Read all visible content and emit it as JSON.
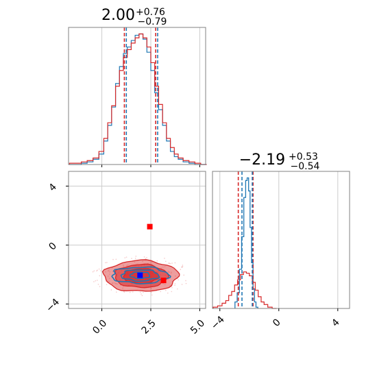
{
  "chart_data": {
    "type": "corner",
    "colors": {
      "series_a": "#d62728",
      "series_b": "#1f77b4",
      "marker_a": "#ff0000",
      "marker_b": "#0000ff",
      "grid": "#cccccc",
      "axes": "#808080"
    },
    "param1": {
      "title_main": "2.00",
      "title_sup": "+0.76",
      "title_sub": "−0.79",
      "xlim": [
        -1.7,
        5.3
      ],
      "xticks": [
        0.0,
        2.5,
        5.0
      ],
      "xtick_labels": [
        "0.0",
        "2.5",
        "5.0"
      ],
      "quantiles_a": [
        1.15,
        2.75
      ],
      "quantiles_b": [
        1.25,
        2.85
      ],
      "hist_x": [
        -1.5,
        -1.2,
        -0.9,
        -0.6,
        -0.3,
        0.0,
        0.2,
        0.4,
        0.6,
        0.8,
        1.0,
        1.2,
        1.4,
        1.6,
        1.8,
        2.0,
        2.2,
        2.4,
        2.6,
        2.8,
        3.0,
        3.2,
        3.4,
        3.6,
        3.8,
        4.0,
        4.3,
        4.6,
        4.9,
        5.2
      ],
      "hist_a": [
        0.01,
        0.01,
        0.02,
        0.03,
        0.05,
        0.1,
        0.2,
        0.32,
        0.45,
        0.6,
        0.72,
        0.82,
        0.88,
        0.93,
        0.97,
        1.0,
        0.97,
        0.9,
        0.78,
        0.6,
        0.46,
        0.32,
        0.2,
        0.13,
        0.08,
        0.05,
        0.03,
        0.02,
        0.01,
        0.0
      ],
      "hist_b": [
        0.0,
        0.0,
        0.01,
        0.02,
        0.04,
        0.08,
        0.18,
        0.3,
        0.44,
        0.62,
        0.75,
        0.85,
        0.9,
        0.95,
        0.99,
        1.0,
        0.96,
        0.86,
        0.72,
        0.55,
        0.42,
        0.3,
        0.18,
        0.1,
        0.06,
        0.04,
        0.02,
        0.01,
        0.0,
        0.0
      ]
    },
    "param2": {
      "title_main": "−2.19",
      "title_sup": "+0.53",
      "title_sub": "−0.54",
      "xlim": [
        -4.5,
        4.8
      ],
      "xticks": [
        -4,
        0,
        4
      ],
      "xtick_labels": [
        "−4",
        "0",
        "4"
      ],
      "quantiles_a": [
        -2.75,
        -1.75
      ],
      "quantiles_b": [
        -2.5,
        -1.8
      ],
      "hist_a_x": [
        -4.3,
        -4.0,
        -3.7,
        -3.5,
        -3.3,
        -3.1,
        -2.9,
        -2.7,
        -2.5,
        -2.3,
        -2.1,
        -1.9,
        -1.7,
        -1.5,
        -1.3,
        -1.1,
        -0.9,
        -0.6,
        -0.3
      ],
      "hist_a": [
        0.01,
        0.02,
        0.04,
        0.06,
        0.1,
        0.13,
        0.18,
        0.22,
        0.26,
        0.28,
        0.27,
        0.25,
        0.2,
        0.14,
        0.09,
        0.05,
        0.03,
        0.01,
        0.0
      ],
      "hist_b_x": [
        -2.9,
        -2.75,
        -2.6,
        -2.45,
        -2.3,
        -2.2,
        -2.1,
        -2.0,
        -1.9,
        -1.8,
        -1.7,
        -1.6,
        -1.5
      ],
      "hist_b": [
        0.05,
        0.12,
        0.3,
        0.55,
        0.85,
        0.98,
        1.0,
        0.9,
        0.62,
        0.35,
        0.15,
        0.05,
        0.01
      ]
    },
    "joint": {
      "xlim": [
        -1.7,
        5.3
      ],
      "ylim": [
        -4.3,
        5.0
      ],
      "yticks": [
        -4,
        0,
        4
      ],
      "ytick_labels": [
        "−4",
        "0",
        "4"
      ],
      "center": [
        2.0,
        -2.1
      ],
      "contours_a": [
        {
          "rx": 1.9,
          "ry": 1.05,
          "alpha": 0.45
        },
        {
          "rx": 1.35,
          "ry": 0.78,
          "alpha": 0.55
        },
        {
          "rx": 0.9,
          "ry": 0.5,
          "alpha": 0.65
        }
      ],
      "contours_b": [
        {
          "rx": 1.45,
          "ry": 0.55
        },
        {
          "rx": 0.95,
          "ry": 0.38
        },
        {
          "rx": 0.5,
          "ry": 0.22
        }
      ],
      "markers_a": [
        [
          2.45,
          1.25
        ],
        [
          3.15,
          -2.4
        ]
      ],
      "markers_b": [
        [
          1.95,
          -2.05
        ]
      ]
    }
  }
}
